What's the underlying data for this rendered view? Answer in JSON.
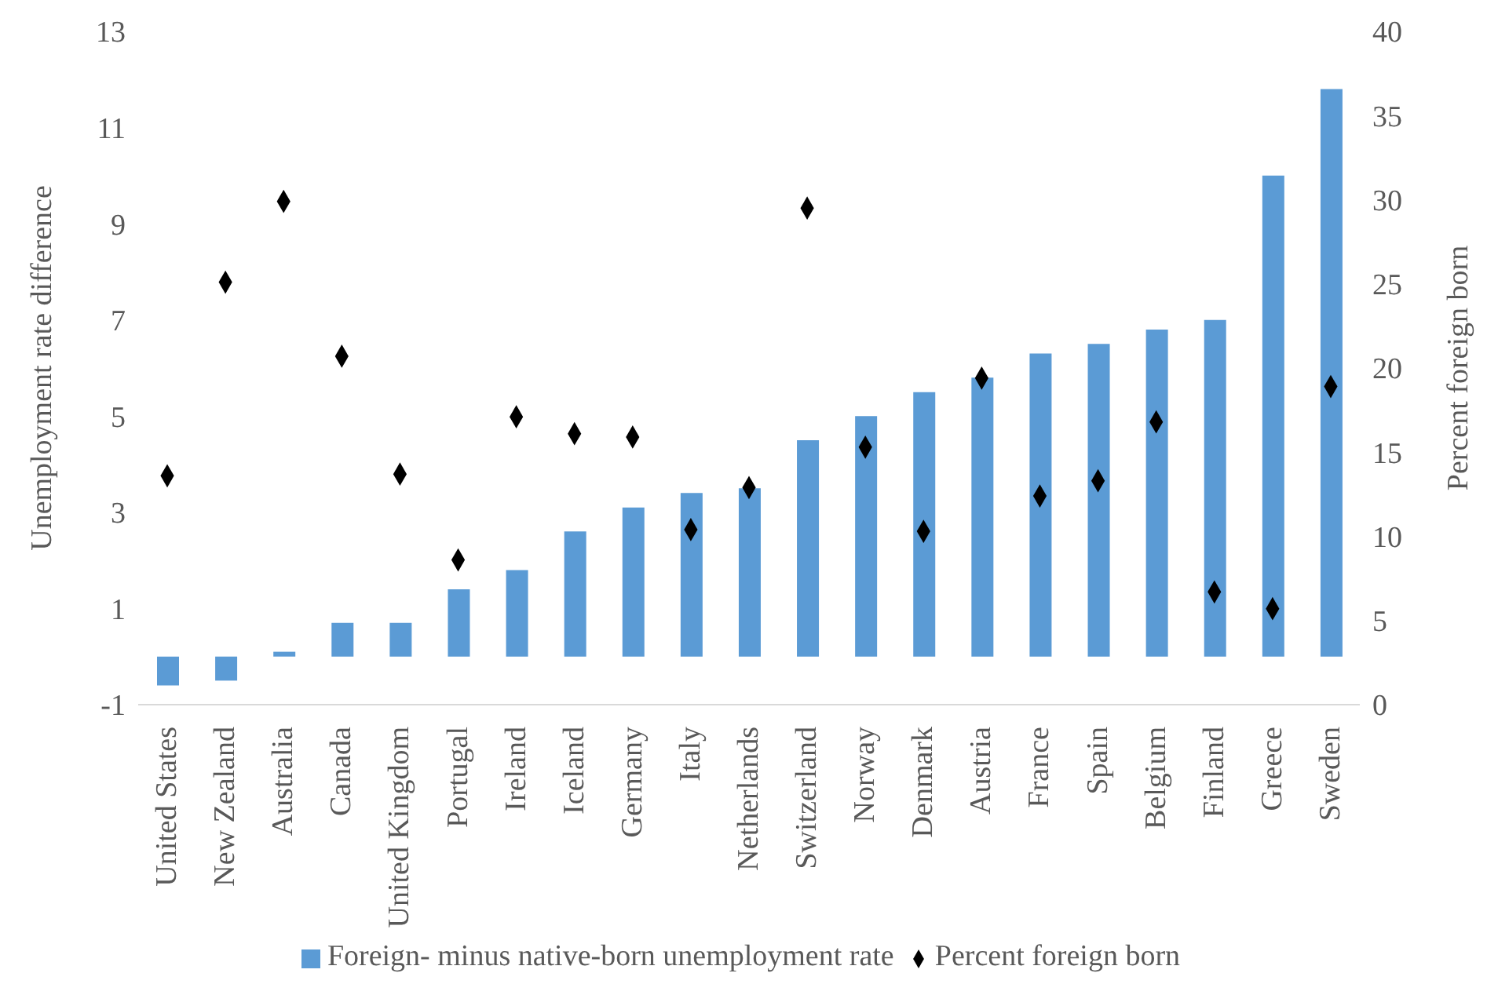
{
  "chart_data": {
    "type": "bar",
    "ylabel": "Unemployment rate difference",
    "y2label": "Percent foreign born",
    "categories": [
      "United States",
      "New Zealand",
      "Australia",
      "Canada",
      "United Kingdom",
      "Portugal",
      "Ireland",
      "Iceland",
      "Germany",
      "Italy",
      "Netherlands",
      "Switzerland",
      "Norway",
      "Denmark",
      "Austria",
      "France",
      "Spain",
      "Belgium",
      "Finland",
      "Greece",
      "Sweden"
    ],
    "series": [
      {
        "name": "Foreign- minus native-born unemployment rate",
        "color": "#5b9bd5",
        "values": [
          -0.6,
          -0.5,
          0.1,
          0.7,
          0.7,
          1.4,
          1.8,
          2.6,
          3.1,
          3.4,
          3.5,
          4.5,
          5.0,
          5.5,
          5.8,
          6.3,
          6.5,
          6.8,
          7.0,
          10.0,
          11.8
        ]
      },
      {
        "name": "Percent foreign born",
        "type": "scatter",
        "axis": "y2",
        "color": "#000000",
        "values": [
          13.6,
          25.1,
          29.9,
          20.7,
          13.7,
          8.6,
          17.1,
          16.1,
          15.9,
          10.4,
          12.9,
          29.5,
          15.3,
          10.3,
          19.4,
          12.4,
          13.3,
          16.8,
          6.7,
          5.7,
          18.9
        ]
      }
    ],
    "ylim": [
      -1,
      13
    ],
    "yticks": [
      -1,
      1,
      3,
      5,
      7,
      9,
      11,
      13
    ],
    "y2lim": [
      0,
      40
    ],
    "y2ticks": [
      0,
      5,
      10,
      15,
      20,
      25,
      30,
      35,
      40
    ],
    "legend": "bottom",
    "marker": "diamond"
  }
}
